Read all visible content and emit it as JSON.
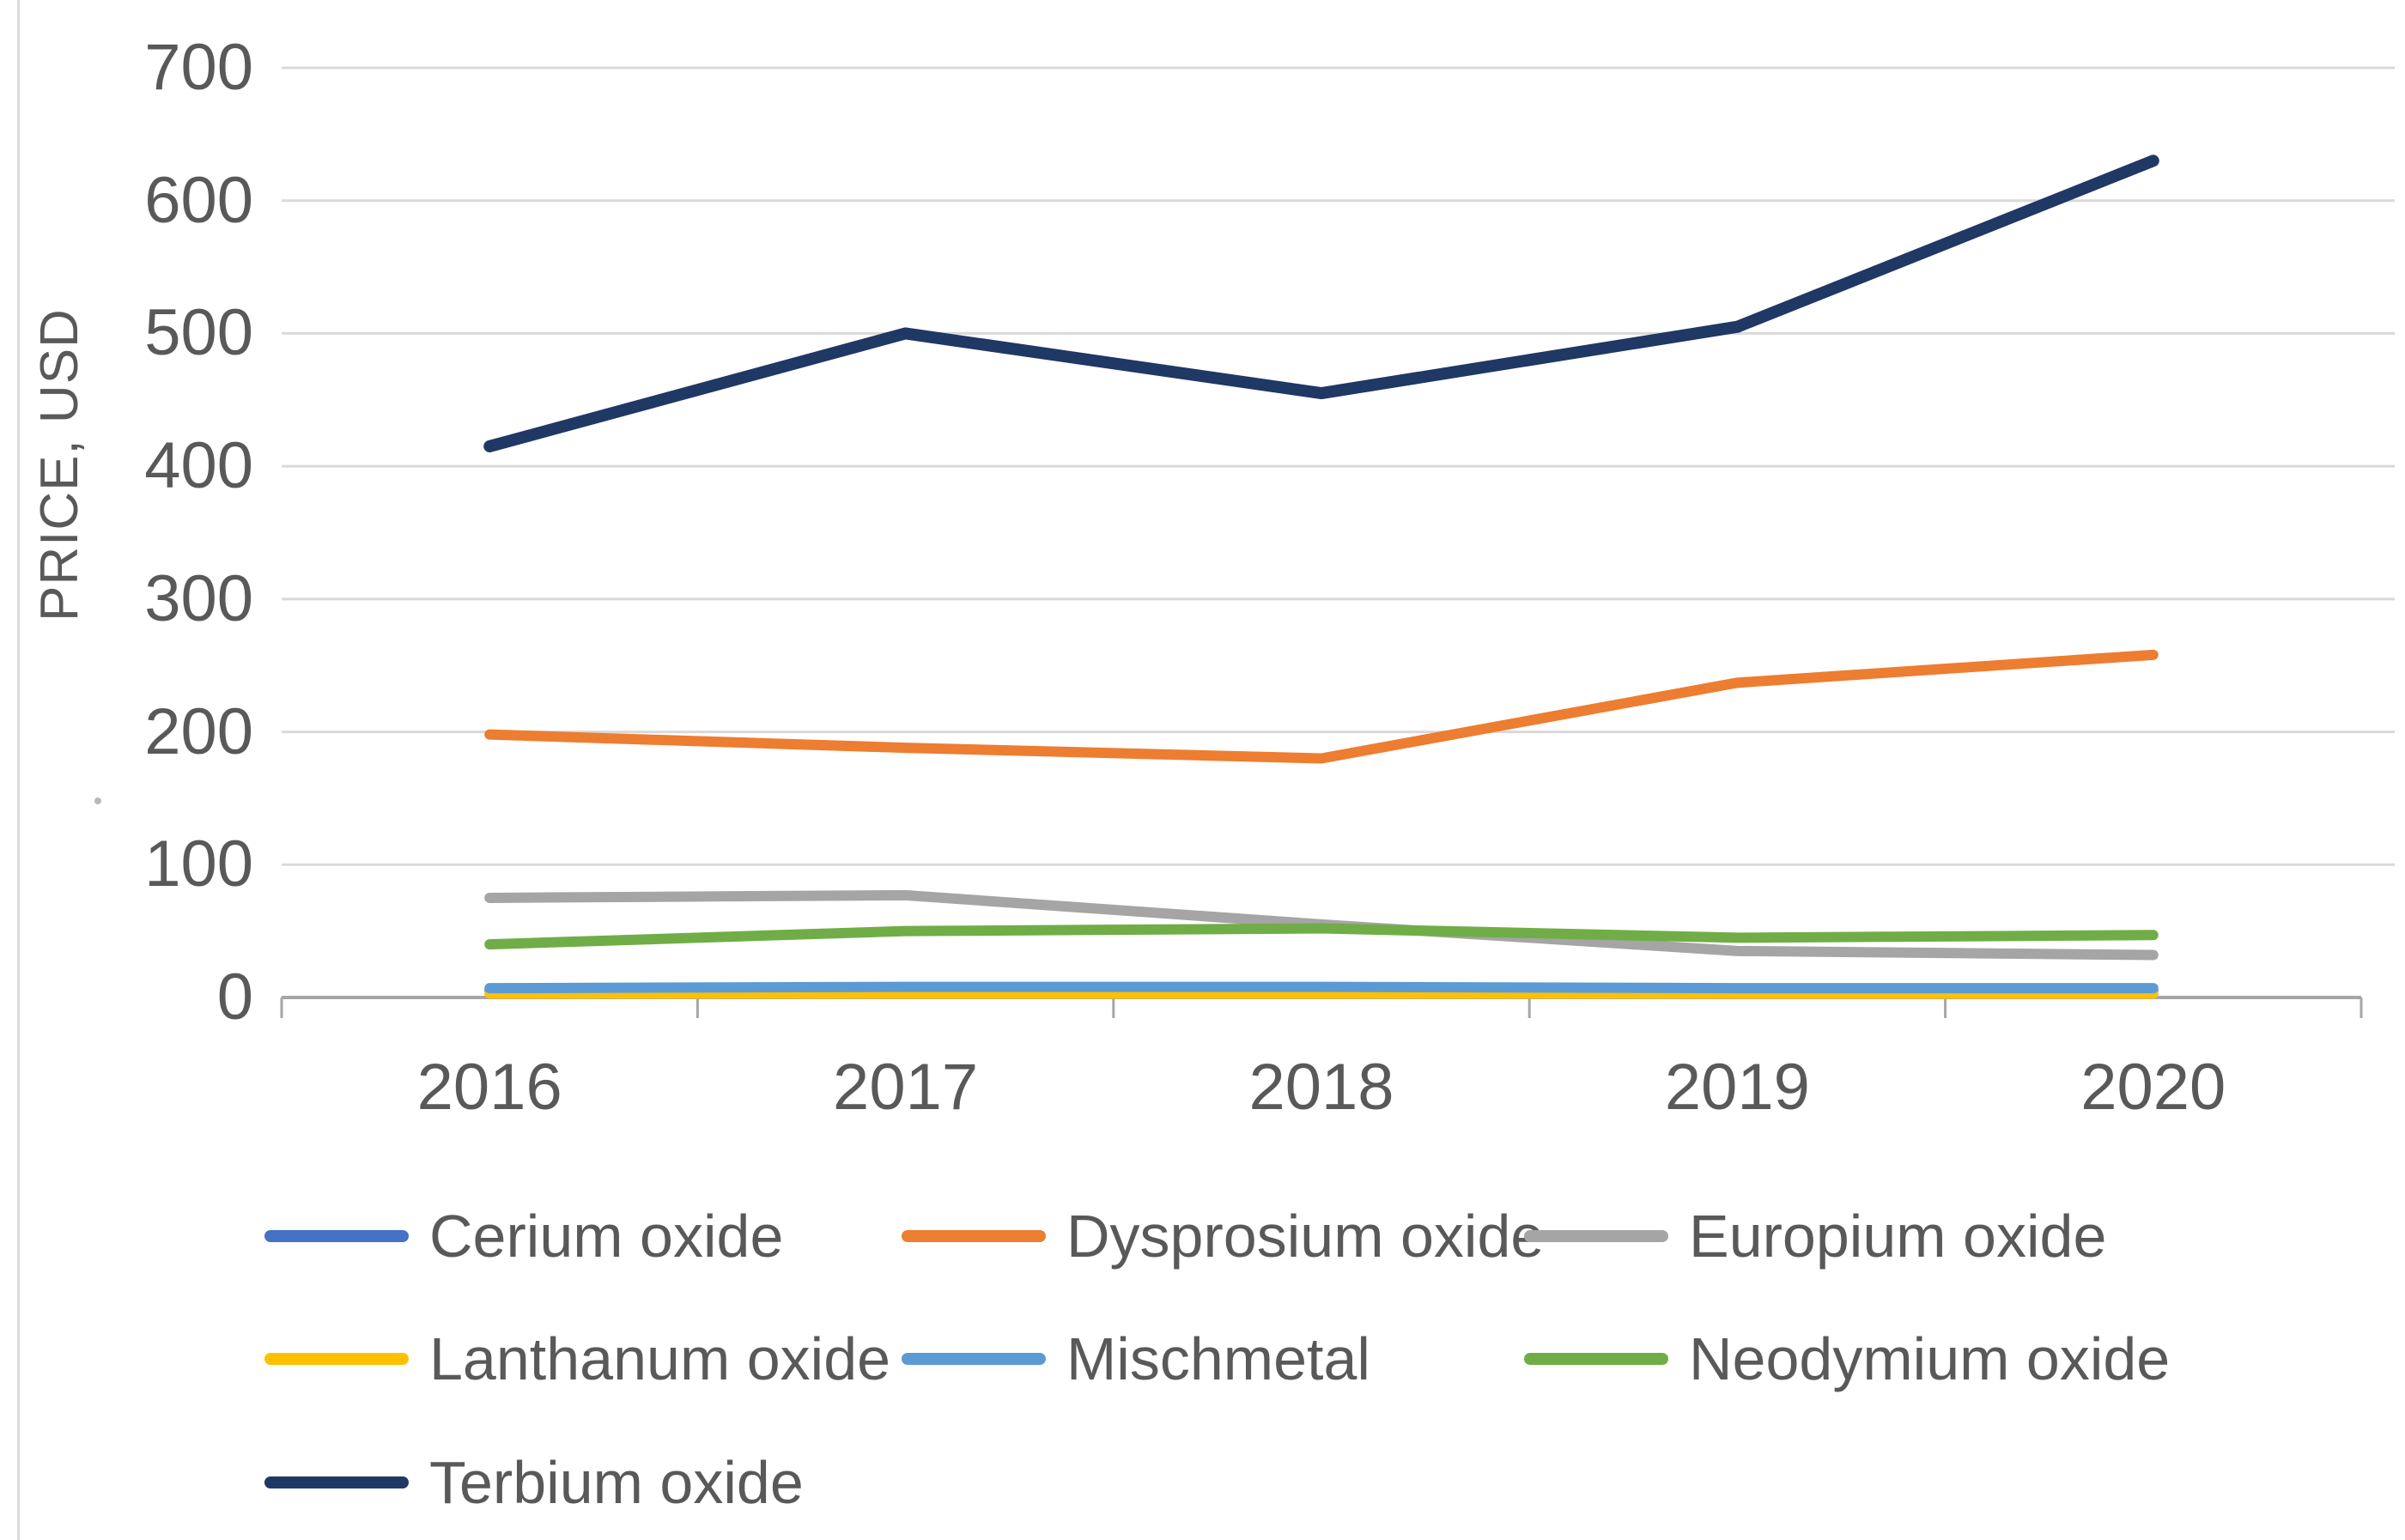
{
  "page": {
    "background": "#ffffff"
  },
  "chart_data": {
    "type": "line",
    "title": "",
    "xlabel": "",
    "ylabel": "PRICE, USD",
    "x": [
      "2016",
      "2017",
      "2018",
      "2019",
      "2020"
    ],
    "ylim": [
      0,
      700
    ],
    "yticks": [
      0,
      100,
      200,
      300,
      400,
      500,
      600,
      700
    ],
    "grid": true,
    "gridline_color": "#d9d9d9",
    "axis_line_color": "#a6a6a6",
    "tick_label_color": "#595959",
    "legend_position": "bottom",
    "series": [
      {
        "name": "Cerium oxide",
        "color": "#4472C4",
        "values": [
          5,
          5,
          5,
          5,
          5
        ]
      },
      {
        "name": "Dysprosium oxide",
        "color": "#ED7D31",
        "values": [
          198,
          188,
          180,
          237,
          258
        ]
      },
      {
        "name": "Europium oxide",
        "color": "#A5A5A5",
        "values": [
          75,
          77,
          55,
          35,
          32
        ]
      },
      {
        "name": "Lanthanum oxide",
        "color": "#FFC000",
        "values": [
          3,
          3,
          3,
          3,
          3
        ]
      },
      {
        "name": "Mischmetal",
        "color": "#5B9BD5",
        "values": [
          7,
          8,
          8,
          7,
          7
        ]
      },
      {
        "name": "Neodymium oxide",
        "color": "#70AD47",
        "values": [
          40,
          50,
          52,
          45,
          47
        ]
      },
      {
        "name": "Terbium oxide",
        "color": "#1F3864",
        "values": [
          415,
          500,
          455,
          505,
          630
        ]
      }
    ]
  }
}
